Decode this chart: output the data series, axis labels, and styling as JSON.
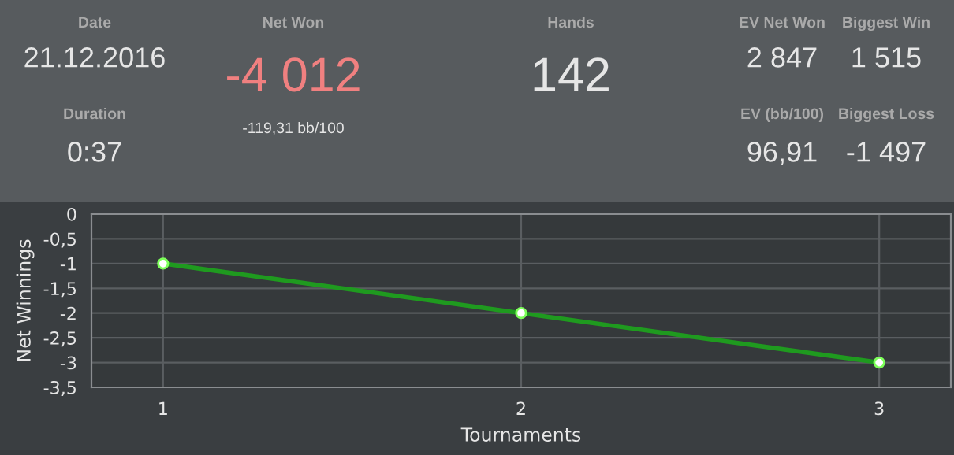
{
  "chart_data": {
    "type": "line",
    "xlabel": "Tournaments",
    "ylabel": "Net Winnings",
    "x": [
      1,
      2,
      3
    ],
    "series": [
      {
        "color": "#1f9a1f",
        "values": [
          -1,
          -2,
          -3
        ]
      }
    ],
    "xlim": [
      0.8,
      3.2
    ],
    "xticks": [
      1,
      2,
      3
    ],
    "ylim": [
      -3.5,
      0
    ],
    "yticks": [
      0,
      {
        "value": -0.5,
        "label": "-0,5"
      },
      -1,
      {
        "value": -1.5,
        "label": "-1,5"
      },
      -2,
      {
        "value": -2.5,
        "label": "-2,5"
      },
      -3,
      {
        "value": -3.5,
        "label": "-3,5"
      }
    ],
    "grid": true,
    "marker": "circle",
    "line_style": "solid",
    "legend": false,
    "annotations": [
      "Date",
      "21.12.2016",
      "Duration",
      "0:37",
      "Net Won",
      "-4 012",
      "-119,31 bb/100",
      "Hands",
      "142",
      "EV Net Won",
      "2 847",
      "Biggest Win",
      "1 515",
      "EV (bb/100)",
      "96,91",
      "Biggest Loss",
      "-1 497"
    ]
  }
}
